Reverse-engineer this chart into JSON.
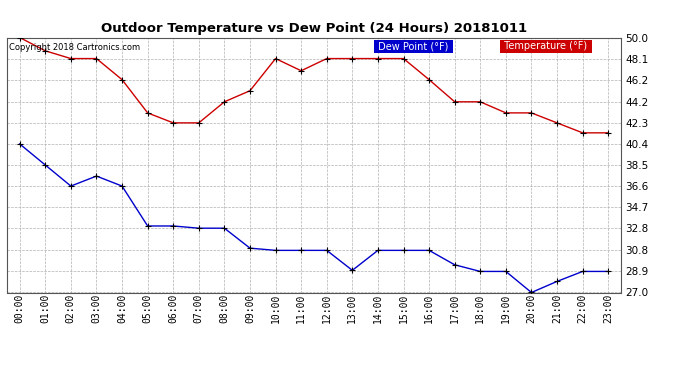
{
  "title": "Outdoor Temperature vs Dew Point (24 Hours) 20181011",
  "copyright": "Copyright 2018 Cartronics.com",
  "x_labels": [
    "00:00",
    "01:00",
    "02:00",
    "03:00",
    "04:00",
    "05:00",
    "06:00",
    "07:00",
    "08:00",
    "09:00",
    "10:00",
    "11:00",
    "12:00",
    "13:00",
    "14:00",
    "15:00",
    "16:00",
    "17:00",
    "18:00",
    "19:00",
    "20:00",
    "21:00",
    "22:00",
    "23:00"
  ],
  "temp_data": [
    50.0,
    48.8,
    48.1,
    48.1,
    46.2,
    43.2,
    42.3,
    42.3,
    44.2,
    45.2,
    48.1,
    47.0,
    48.1,
    48.1,
    48.1,
    48.1,
    46.2,
    44.2,
    44.2,
    43.2,
    43.2,
    42.3,
    41.4,
    41.4
  ],
  "dew_data": [
    40.4,
    38.5,
    36.6,
    37.5,
    36.6,
    33.0,
    33.0,
    32.8,
    32.8,
    31.0,
    30.8,
    30.8,
    30.8,
    29.0,
    30.8,
    30.8,
    30.8,
    29.5,
    28.9,
    28.9,
    27.0,
    28.0,
    28.9,
    28.9
  ],
  "temp_color": "#cc0000",
  "dew_color": "#0000cc",
  "background_color": "#ffffff",
  "plot_bg_color": "#ffffff",
  "grid_color": "#b0b0b0",
  "ylim_min": 27.0,
  "ylim_max": 50.0,
  "yticks": [
    27.0,
    28.9,
    30.8,
    32.8,
    34.7,
    36.6,
    38.5,
    40.4,
    42.3,
    44.2,
    46.2,
    48.1,
    50.0
  ],
  "legend_dew_bg": "#0000cc",
  "legend_temp_bg": "#cc0000",
  "legend_text_color": "#ffffff",
  "fig_width": 6.9,
  "fig_height": 3.75,
  "dpi": 100
}
